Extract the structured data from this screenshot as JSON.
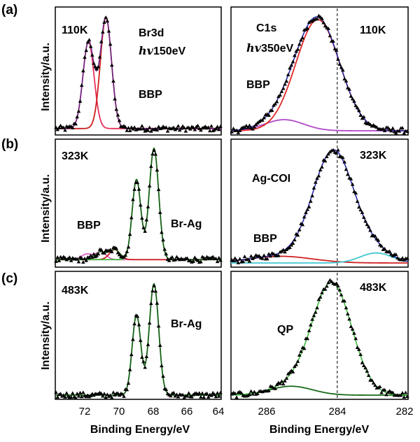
{
  "row_labels": [
    "(a)",
    "(b)",
    "(c)"
  ],
  "axes": {
    "ylabel": "Intensity/a.u.",
    "xlabel": "Binding Energy/eV",
    "left_ticks": [
      "72",
      "70",
      "68",
      "66",
      "64"
    ],
    "right_ticks": [
      "286",
      "284",
      "282"
    ]
  },
  "chart_data": [
    {
      "id": "a-left",
      "type": "line",
      "texts": [
        "110K",
        "Br3d",
        "hv",
        "150eV",
        "BBP"
      ],
      "xlim": [
        73.5,
        64
      ],
      "ylim": [
        0,
        1.05
      ],
      "series": [
        {
          "color": "#e8305a",
          "peaks": [
            [
              71.6,
              0.78,
              0.32
            ]
          ],
          "base": 0.02
        },
        {
          "color": "#cc1f1f",
          "peaks": [
            [
              70.6,
              1.0,
              0.32
            ]
          ],
          "base": 0.02
        },
        {
          "color": "#6a2a8a",
          "peaks": [
            [
              71.6,
              0.78,
              0.32
            ],
            [
              70.6,
              1.0,
              0.32
            ]
          ],
          "base": 0.02
        }
      ],
      "dashed_x": null
    },
    {
      "id": "a-right",
      "type": "line",
      "texts": [
        "C1s",
        "hv",
        "350eV",
        "110K",
        "BBP"
      ],
      "xlim": [
        287,
        282
      ],
      "ylim": [
        0,
        1.05
      ],
      "series": [
        {
          "color": "#b048c8",
          "peaks": [
            [
              285.5,
              0.1,
              0.55
            ]
          ],
          "base": 0.0
        },
        {
          "color": "#e02a2a",
          "peaks": [
            [
              284.55,
              1.0,
              0.62
            ]
          ],
          "base": 0.0
        },
        {
          "color": "#2a2aa8",
          "peaks": [
            [
              284.55,
              1.0,
              0.62
            ],
            [
              285.5,
              0.1,
              0.55
            ]
          ],
          "base": 0.0
        }
      ],
      "dashed_x": 284
    },
    {
      "id": "b-left",
      "type": "line",
      "texts": [
        "323K",
        "BBP",
        "Br-Ag"
      ],
      "xlim": [
        73.5,
        64
      ],
      "ylim": [
        0,
        1.05
      ],
      "series": [
        {
          "color": "#e060c0",
          "peaks": [
            [
              70.9,
              0.07,
              0.3
            ],
            [
              71.7,
              0.05,
              0.3
            ]
          ],
          "base": 0.03
        },
        {
          "color": "#d02020",
          "peaks": [
            [
              70.1,
              0.09,
              0.3
            ]
          ],
          "base": 0.03
        },
        {
          "color": "#3cbc3c",
          "peaks": [
            [
              68.85,
              0.72,
              0.25
            ],
            [
              67.85,
              1.0,
              0.27
            ]
          ],
          "base": 0.03
        },
        {
          "color": "#1a5a1a",
          "peaks": [
            [
              68.85,
              0.72,
              0.25
            ],
            [
              67.85,
              1.0,
              0.27
            ],
            [
              70.9,
              0.07,
              0.3
            ],
            [
              70.1,
              0.09,
              0.3
            ]
          ],
          "base": 0.03
        }
      ],
      "dashed_x": null
    },
    {
      "id": "b-right",
      "type": "line",
      "texts": [
        "323K",
        "Ag-COI",
        "BBP"
      ],
      "xlim": [
        287,
        282
      ],
      "ylim": [
        0,
        1.05
      ],
      "series": [
        {
          "color": "#d02020",
          "peaks": [
            [
              285.6,
              0.06,
              0.9
            ]
          ],
          "base": 0.0
        },
        {
          "color": "#40c8d0",
          "peaks": [
            [
              282.9,
              0.09,
              0.45
            ]
          ],
          "base": 0.0
        },
        {
          "color": "#2a2aa8",
          "peaks": [
            [
              284.1,
              1.0,
              0.58
            ],
            [
              282.9,
              0.09,
              0.45
            ],
            [
              285.6,
              0.06,
              0.9
            ]
          ],
          "base": 0.0
        }
      ],
      "dashed_x": 284
    },
    {
      "id": "c-left",
      "type": "line",
      "texts": [
        "483K",
        "Br-Ag"
      ],
      "xlim": [
        73.5,
        64
      ],
      "ylim": [
        0,
        1.05
      ],
      "series": [
        {
          "color": "#3cbc3c",
          "peaks": [
            [
              68.85,
              0.72,
              0.25
            ],
            [
              67.85,
              1.0,
              0.27
            ]
          ],
          "base": 0.0
        },
        {
          "color": "#1a5a1a",
          "peaks": [
            [
              68.85,
              0.72,
              0.25
            ],
            [
              67.85,
              1.0,
              0.27
            ]
          ],
          "base": 0.0
        }
      ],
      "dashed_x": null
    },
    {
      "id": "c-right",
      "type": "line",
      "texts": [
        "483K",
        "QP"
      ],
      "xlim": [
        287,
        282
      ],
      "ylim": [
        0,
        1.05
      ],
      "series": [
        {
          "color": "#1a6a1a",
          "peaks": [
            [
              285.3,
              0.08,
              0.6
            ]
          ],
          "base": 0.0
        },
        {
          "color": "#3cbc3c",
          "peaks": [
            [
              284.15,
              1.0,
              0.56
            ],
            [
              285.3,
              0.08,
              0.6
            ]
          ],
          "base": 0.0
        }
      ],
      "dashed_x": 284
    }
  ]
}
